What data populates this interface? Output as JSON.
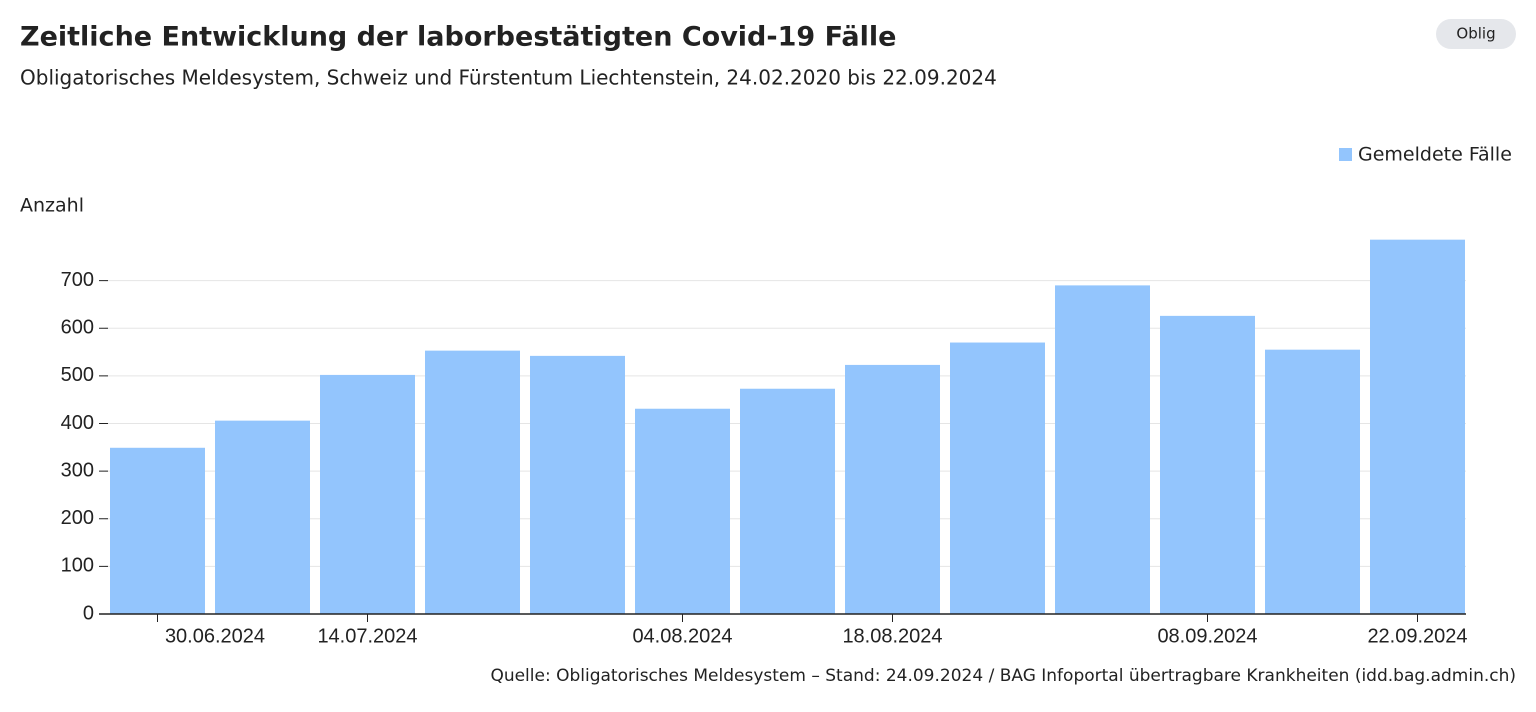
{
  "chart_data": {
    "type": "bar",
    "title": "Zeitliche Entwicklung der laborbestätigten Covid-19 Fälle",
    "subtitle": "Obligatorisches Meldesystem, Schweiz und Fürstentum Liechtenstein, 24.02.2020 bis 22.09.2024",
    "button": "Oblig",
    "y_label": "Anzahl",
    "source": "Quelle: Obligatorisches Meldesystem – Stand: 24.09.2024 / BAG Infoportal übertragbare Krankheiten (idd.bag.admin.ch)",
    "categories": [
      "30.06.2024",
      null,
      "14.07.2024",
      null,
      null,
      "04.08.2024",
      null,
      "18.08.2024",
      null,
      null,
      "08.09.2024",
      null,
      "22.09.2024"
    ],
    "series": [
      {
        "name": "Gemeldete Fälle",
        "color": "#93c5fd",
        "values": [
          349,
          406,
          502,
          553,
          542,
          431,
          473,
          523,
          570,
          690,
          626,
          555,
          786
        ]
      }
    ],
    "ylim": [
      0,
      800
    ],
    "yticks": [
      0,
      100,
      200,
      300,
      400,
      500,
      600,
      700
    ],
    "grid": true,
    "legend": "top-right"
  }
}
